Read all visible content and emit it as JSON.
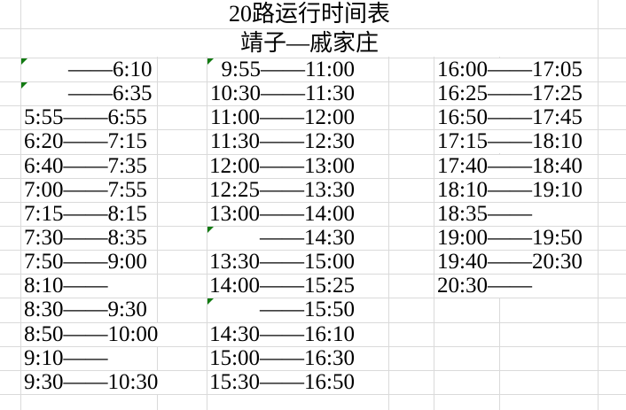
{
  "header": {
    "title": "20路运行时间表",
    "route": "靖子—戚家庄"
  },
  "schedule": {
    "columns": [
      {
        "times": [
          "——6:10",
          "——6:35",
          "5:55——6:55",
          "6:20——7:15",
          "6:40——7:35",
          "7:00——7:55",
          "7:15——8:15",
          "7:30——8:35",
          "7:50——9:00",
          "8:10——",
          "8:30——9:30",
          "8:50——10:00",
          "9:10——",
          "9:30——10:30"
        ]
      },
      {
        "times": [
          "9:55——11:00",
          "10:30——11:30",
          "11:00——12:00",
          "11:30——12:30",
          "12:00——13:00",
          "12:25——13:30",
          "13:00——14:00",
          "——14:30",
          "13:30——15:00",
          "14:00——15:25",
          "——15:50",
          "14:30——16:10",
          "15:00——16:30",
          "15:30——16:50"
        ]
      },
      {
        "times": [
          "16:00——17:05",
          "16:25——17:25",
          "16:50——17:45",
          "17:15——18:10",
          "17:40——18:40",
          "18:10——19:10",
          "18:35——",
          "19:00——19:50",
          "19:40——20:30",
          "20:30——",
          "",
          "",
          "",
          ""
        ]
      }
    ],
    "error_markers": [
      {
        "col": 0,
        "row": 0
      },
      {
        "col": 0,
        "row": 1
      },
      {
        "col": 1,
        "row": 0
      },
      {
        "col": 1,
        "row": 7
      },
      {
        "col": 1,
        "row": 10
      }
    ]
  },
  "colors": {
    "background": "#ffffff",
    "text": "#000000",
    "gridline": "#dadada",
    "error_marker_green": "#117a11"
  }
}
